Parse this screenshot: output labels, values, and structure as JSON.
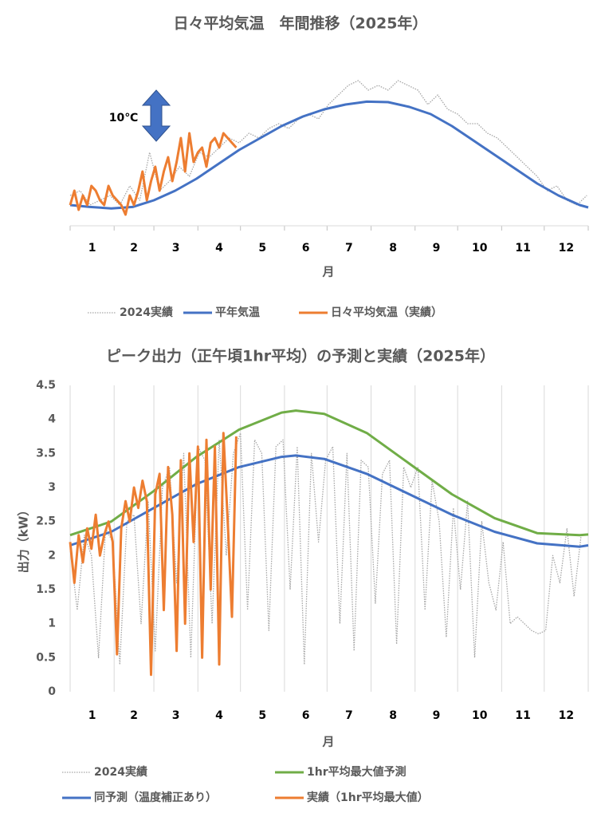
{
  "chart_data": [
    {
      "type": "line",
      "title": "日々平均気温　年間推移（2025年）",
      "xlabel": "月",
      "annotation": "10℃",
      "categories": [
        "1",
        "2",
        "3",
        "4",
        "5",
        "6",
        "7",
        "8",
        "9",
        "10",
        "11",
        "12"
      ],
      "xticks": [
        1,
        32,
        60,
        91,
        121,
        152,
        182,
        213,
        244,
        274,
        305,
        335,
        366
      ],
      "xlim": [
        1,
        366
      ],
      "ylim": [
        3,
        35.5
      ],
      "grid": false,
      "series": [
        {
          "name": "2024実績",
          "color": "#a6a6a6",
          "style": "dotted",
          "x": [
            1,
            8,
            15,
            22,
            29,
            36,
            43,
            50,
            57,
            64,
            71,
            78,
            85,
            92,
            99,
            106,
            113,
            120,
            127,
            134,
            141,
            148,
            155,
            162,
            169,
            176,
            183,
            190,
            197,
            204,
            211,
            218,
            225,
            232,
            239,
            246,
            253,
            260,
            267,
            274,
            281,
            288,
            295,
            302,
            309,
            316,
            323,
            330,
            337,
            344,
            351,
            358,
            365
          ],
          "values": [
            8,
            9,
            6,
            7,
            8,
            6,
            10,
            7,
            17,
            9,
            11,
            14,
            12,
            17,
            16,
            18,
            20,
            19,
            21,
            20,
            22,
            23,
            22,
            24,
            25,
            24,
            27,
            29,
            31,
            32,
            30,
            31,
            30,
            32,
            31,
            30,
            27,
            29,
            26,
            25,
            23,
            23,
            21,
            20,
            18,
            16,
            14,
            12,
            9,
            10,
            7,
            6,
            8
          ]
        },
        {
          "name": "平年気温",
          "color": "#4472c4",
          "style": "solid",
          "x": [
            1,
            15,
            30,
            45,
            60,
            75,
            90,
            105,
            120,
            135,
            150,
            165,
            180,
            195,
            210,
            225,
            240,
            255,
            270,
            285,
            300,
            315,
            330,
            345,
            360,
            366
          ],
          "values": [
            6,
            5.6,
            5.3,
            5.6,
            7,
            9,
            11.5,
            14.5,
            17.5,
            20,
            22.5,
            24.5,
            26,
            27,
            27.6,
            27.5,
            26.5,
            25,
            22.5,
            19.5,
            16.5,
            13.5,
            10.5,
            8,
            6,
            5.5
          ]
        },
        {
          "name": "日々平均気温（実績）",
          "color": "#ed7d31",
          "style": "solid",
          "x": [
            1,
            4,
            7,
            10,
            13,
            16,
            19,
            22,
            25,
            28,
            31,
            34,
            37,
            40,
            43,
            46,
            49,
            52,
            55,
            58,
            61,
            64,
            67,
            70,
            73,
            76,
            79,
            82,
            85,
            88,
            91,
            94,
            97,
            100,
            103,
            106,
            109,
            112,
            115,
            118
          ],
          "values": [
            6,
            9,
            5,
            8,
            6,
            10,
            9,
            7,
            6,
            10,
            8,
            7,
            6,
            4,
            8,
            6,
            9,
            13,
            7,
            11,
            14,
            9,
            13,
            16,
            11,
            15,
            20,
            13,
            21,
            15,
            17,
            18,
            14,
            19,
            20,
            18,
            21,
            20,
            19,
            18
          ]
        }
      ]
    },
    {
      "type": "line",
      "title": "ピーク出力（正午頃1hr平均）の予測と実績（2025年）",
      "xlabel": "月",
      "ylabel": "出力（kW）",
      "categories": [
        "1",
        "2",
        "3",
        "4",
        "5",
        "6",
        "7",
        "8",
        "9",
        "10",
        "11",
        "12"
      ],
      "xticks": [
        1,
        32,
        60,
        91,
        121,
        152,
        182,
        213,
        244,
        274,
        305,
        335,
        366
      ],
      "xlim": [
        1,
        366
      ],
      "ylim": [
        0,
        4.5
      ],
      "yticks": [
        0,
        0.5,
        1,
        1.5,
        2,
        2.5,
        3,
        3.5,
        4,
        4.5
      ],
      "grid": true,
      "series": [
        {
          "name": "2024実績",
          "color": "#a6a6a6",
          "style": "dotted",
          "x": [
            1,
            6,
            11,
            16,
            21,
            26,
            31,
            36,
            41,
            46,
            51,
            56,
            61,
            66,
            71,
            76,
            81,
            86,
            91,
            96,
            101,
            106,
            111,
            116,
            121,
            126,
            131,
            136,
            141,
            146,
            151,
            156,
            161,
            166,
            171,
            176,
            181,
            186,
            191,
            196,
            201,
            206,
            211,
            216,
            221,
            226,
            231,
            236,
            241,
            246,
            251,
            256,
            261,
            266,
            271,
            276,
            281,
            286,
            291,
            296,
            301,
            306,
            311,
            316,
            321,
            326,
            331,
            336,
            341,
            346,
            351,
            356,
            361
          ],
          "values": [
            2.1,
            1.2,
            2.3,
            2.0,
            0.5,
            2.4,
            2.2,
            0.4,
            2.5,
            2.6,
            1.0,
            2.8,
            0.6,
            3.0,
            3.3,
            1.6,
            3.5,
            0.5,
            3.6,
            3.4,
            1.0,
            3.7,
            2.0,
            3.5,
            3.8,
            1.2,
            3.7,
            3.5,
            0.9,
            3.6,
            3.7,
            1.5,
            3.6,
            0.4,
            3.5,
            2.2,
            3.4,
            3.6,
            1.0,
            3.5,
            0.6,
            3.4,
            3.3,
            1.3,
            3.2,
            3.4,
            0.7,
            3.3,
            3.0,
            3.3,
            1.2,
            3.1,
            2.5,
            0.8,
            2.7,
            1.5,
            2.8,
            0.5,
            2.5,
            1.6,
            1.2,
            2.2,
            1.0,
            1.1,
            1.0,
            0.9,
            0.85,
            0.9,
            2.0,
            1.6,
            2.4,
            1.4,
            2.3
          ]
        },
        {
          "name": "1hr平均最大値予測",
          "color": "#70ad47",
          "style": "solid",
          "x": [
            1,
            30,
            60,
            90,
            120,
            150,
            160,
            180,
            210,
            240,
            270,
            300,
            330,
            360,
            366
          ],
          "values": [
            2.3,
            2.5,
            2.95,
            3.45,
            3.85,
            4.1,
            4.13,
            4.08,
            3.8,
            3.35,
            2.9,
            2.55,
            2.33,
            2.3,
            2.31
          ]
        },
        {
          "name": "同予測（温度補正あり）",
          "color": "#4472c4",
          "style": "solid",
          "x": [
            1,
            30,
            60,
            90,
            120,
            150,
            160,
            180,
            210,
            240,
            270,
            300,
            330,
            360,
            366
          ],
          "values": [
            2.15,
            2.35,
            2.7,
            3.05,
            3.3,
            3.45,
            3.47,
            3.42,
            3.2,
            2.9,
            2.6,
            2.35,
            2.18,
            2.13,
            2.15
          ]
        },
        {
          "name": "実績（1hr平均最大値）",
          "color": "#ed7d31",
          "style": "solid",
          "x": [
            1,
            4,
            7,
            10,
            13,
            16,
            19,
            22,
            25,
            28,
            31,
            34,
            37,
            40,
            43,
            46,
            49,
            52,
            55,
            58,
            61,
            64,
            67,
            70,
            73,
            76,
            79,
            82,
            85,
            88,
            91,
            94,
            97,
            100,
            103,
            106,
            109,
            112,
            115,
            118
          ],
          "values": [
            2.2,
            1.6,
            2.3,
            1.9,
            2.4,
            2.1,
            2.6,
            2.0,
            2.3,
            2.5,
            2.2,
            0.55,
            2.4,
            2.8,
            2.5,
            3.0,
            2.7,
            3.1,
            2.8,
            0.25,
            2.9,
            3.2,
            1.2,
            3.3,
            2.6,
            0.6,
            3.4,
            1.0,
            3.5,
            2.2,
            3.6,
            0.5,
            3.7,
            1.5,
            3.6,
            0.4,
            3.8,
            2.5,
            1.1,
            3.75
          ]
        }
      ]
    }
  ]
}
